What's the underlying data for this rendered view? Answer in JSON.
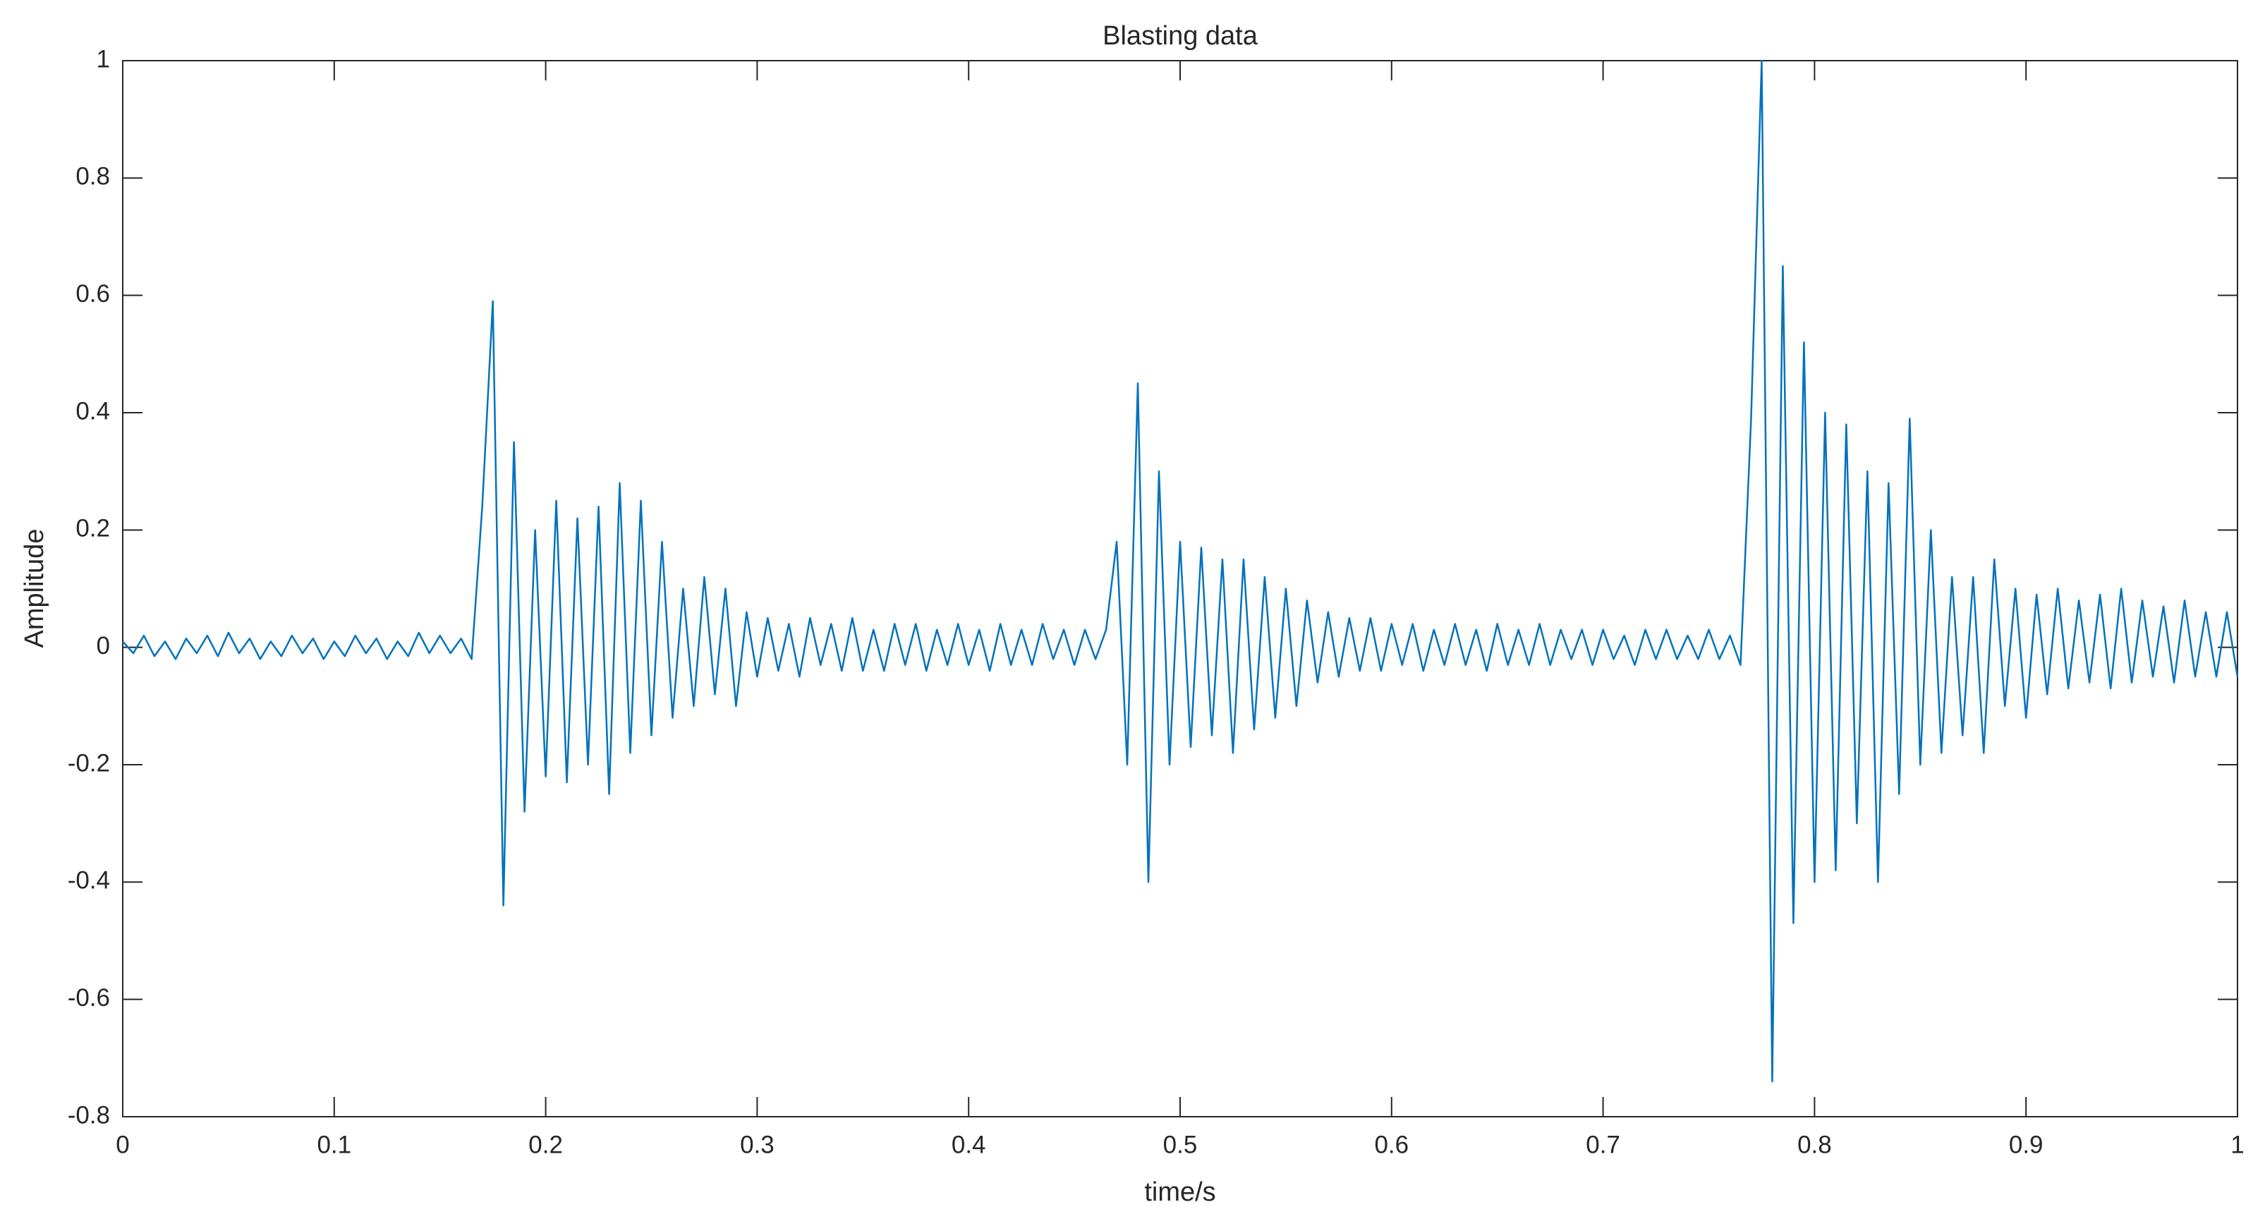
{
  "chart_data": {
    "type": "line",
    "title": "Blasting data",
    "x_label": "time/s",
    "y_label": "Amplitude",
    "color": "#0072BD",
    "grid": false,
    "x": [
      0,
      0.005,
      0.01,
      0.015,
      0.02,
      0.025,
      0.03,
      0.035,
      0.04,
      0.045,
      0.05,
      0.055,
      0.06,
      0.065,
      0.07,
      0.075,
      0.08,
      0.085,
      0.09,
      0.095,
      0.1,
      0.105,
      0.11,
      0.115,
      0.12,
      0.125,
      0.13,
      0.135,
      0.14,
      0.145,
      0.15,
      0.155,
      0.16,
      0.165,
      0.17,
      0.175,
      0.18,
      0.185,
      0.19,
      0.195,
      0.2,
      0.205,
      0.21,
      0.215,
      0.22,
      0.225,
      0.23,
      0.235,
      0.24,
      0.245,
      0.25,
      0.255,
      0.26,
      0.265,
      0.27,
      0.275,
      0.28,
      0.285,
      0.29,
      0.295,
      0.3,
      0.305,
      0.31,
      0.315,
      0.32,
      0.325,
      0.33,
      0.335,
      0.34,
      0.345,
      0.35,
      0.355,
      0.36,
      0.365,
      0.37,
      0.375,
      0.38,
      0.385,
      0.39,
      0.395,
      0.4,
      0.405,
      0.41,
      0.415,
      0.42,
      0.425,
      0.43,
      0.435,
      0.44,
      0.445,
      0.45,
      0.455,
      0.46,
      0.465,
      0.47,
      0.475,
      0.48,
      0.485,
      0.49,
      0.495,
      0.5,
      0.505,
      0.51,
      0.515,
      0.52,
      0.525,
      0.53,
      0.535,
      0.54,
      0.545,
      0.55,
      0.555,
      0.56,
      0.565,
      0.57,
      0.575,
      0.58,
      0.585,
      0.59,
      0.595,
      0.6,
      0.605,
      0.61,
      0.615,
      0.62,
      0.625,
      0.63,
      0.635,
      0.64,
      0.645,
      0.65,
      0.655,
      0.66,
      0.665,
      0.67,
      0.675,
      0.68,
      0.685,
      0.69,
      0.695,
      0.7,
      0.705,
      0.71,
      0.715,
      0.72,
      0.725,
      0.73,
      0.735,
      0.74,
      0.745,
      0.75,
      0.755,
      0.76,
      0.765,
      0.77,
      0.775,
      0.78,
      0.785,
      0.79,
      0.795,
      0.8,
      0.805,
      0.81,
      0.815,
      0.82,
      0.825,
      0.83,
      0.835,
      0.84,
      0.845,
      0.85,
      0.855,
      0.86,
      0.865,
      0.87,
      0.875,
      0.88,
      0.885,
      0.89,
      0.895,
      0.9,
      0.905,
      0.91,
      0.915,
      0.92,
      0.925,
      0.93,
      0.935,
      0.94,
      0.945,
      0.95,
      0.955,
      0.96,
      0.965,
      0.97,
      0.975,
      0.98,
      0.985,
      0.99,
      0.995,
      1
    ],
    "values": [
      0.01,
      -0.01,
      0.02,
      -0.015,
      0.01,
      -0.02,
      0.015,
      -0.01,
      0.02,
      -0.015,
      0.025,
      -0.01,
      0.015,
      -0.02,
      0.01,
      -0.015,
      0.02,
      -0.01,
      0.015,
      -0.02,
      0.01,
      -0.015,
      0.02,
      -0.01,
      0.015,
      -0.02,
      0.01,
      -0.015,
      0.025,
      -0.01,
      0.02,
      -0.01,
      0.015,
      -0.02,
      0.24,
      0.59,
      -0.44,
      0.35,
      -0.28,
      0.2,
      -0.22,
      0.25,
      -0.23,
      0.22,
      -0.2,
      0.24,
      -0.25,
      0.28,
      -0.18,
      0.25,
      -0.15,
      0.18,
      -0.12,
      0.1,
      -0.1,
      0.12,
      -0.08,
      0.1,
      -0.1,
      0.06,
      -0.05,
      0.05,
      -0.04,
      0.04,
      -0.05,
      0.05,
      -0.03,
      0.04,
      -0.04,
      0.05,
      -0.04,
      0.03,
      -0.04,
      0.04,
      -0.03,
      0.04,
      -0.04,
      0.03,
      -0.03,
      0.04,
      -0.03,
      0.03,
      -0.04,
      0.04,
      -0.03,
      0.03,
      -0.03,
      0.04,
      -0.02,
      0.03,
      -0.03,
      0.03,
      -0.02,
      0.03,
      0.18,
      -0.2,
      0.45,
      -0.4,
      0.3,
      -0.2,
      0.18,
      -0.17,
      0.17,
      -0.15,
      0.15,
      -0.18,
      0.15,
      -0.14,
      0.12,
      -0.12,
      0.1,
      -0.1,
      0.08,
      -0.06,
      0.06,
      -0.05,
      0.05,
      -0.04,
      0.05,
      -0.04,
      0.04,
      -0.03,
      0.04,
      -0.04,
      0.03,
      -0.03,
      0.04,
      -0.03,
      0.03,
      -0.04,
      0.04,
      -0.03,
      0.03,
      -0.03,
      0.04,
      -0.03,
      0.03,
      -0.02,
      0.03,
      -0.03,
      0.03,
      -0.02,
      0.02,
      -0.03,
      0.03,
      -0.02,
      0.03,
      -0.02,
      0.02,
      -0.02,
      0.03,
      -0.02,
      0.02,
      -0.03,
      0.39,
      1.0,
      -0.74,
      0.65,
      -0.47,
      0.52,
      -0.4,
      0.4,
      -0.38,
      0.38,
      -0.3,
      0.3,
      -0.4,
      0.28,
      -0.25,
      0.39,
      -0.2,
      0.2,
      -0.18,
      0.12,
      -0.15,
      0.12,
      -0.18,
      0.15,
      -0.1,
      0.1,
      -0.12,
      0.09,
      -0.08,
      0.1,
      -0.07,
      0.08,
      -0.06,
      0.09,
      -0.07,
      0.1,
      -0.06,
      0.08,
      -0.05,
      0.07,
      -0.06,
      0.08,
      -0.05,
      0.06,
      -0.05,
      0.06,
      -0.05
    ],
    "xlim": [
      0,
      1
    ],
    "xticks": [
      0,
      0.1,
      0.2,
      0.3,
      0.4,
      0.5,
      0.6,
      0.7,
      0.8,
      0.9,
      1
    ],
    "ylim": [
      -0.8,
      1
    ],
    "yticks": [
      -0.8,
      -0.6,
      -0.4,
      -0.2,
      0,
      0.2,
      0.4,
      0.6,
      0.8,
      1
    ]
  }
}
